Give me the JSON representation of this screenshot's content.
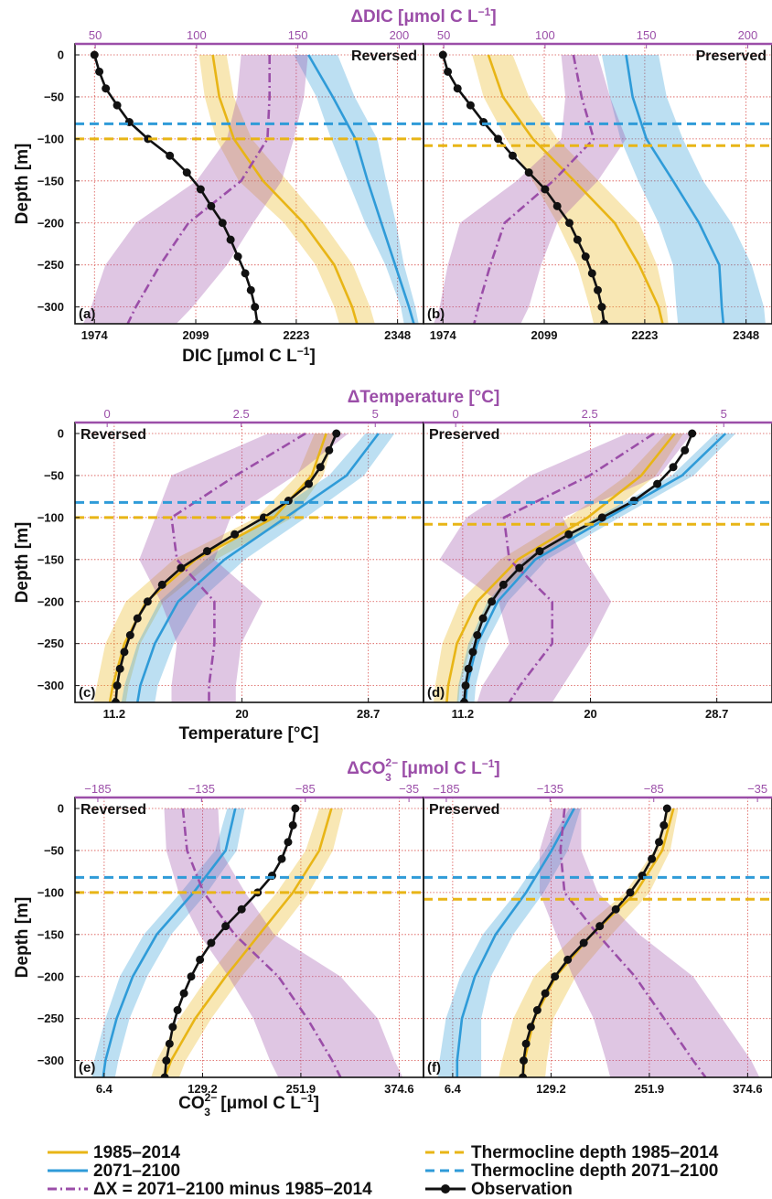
{
  "colors": {
    "gold": "#e8b516",
    "blue": "#2f9bd8",
    "purple": "#9b4ea8",
    "obs": "#111111",
    "grid": "#d9534f"
  },
  "legend": {
    "hist": "1985–2014",
    "fut": "2071–2100",
    "delta": "ΔX = 2071–2100 minus 1985–2014",
    "thermo_hist": "Thermocline depth 1985–2014",
    "thermo_fut": "Thermocline depth 2071–2100",
    "obs": "Observation"
  },
  "chart_data": [
    {
      "type": "line",
      "panel": "(a)",
      "mode": "Reversed",
      "ylabel": "Depth [m]",
      "ylim": [
        -320,
        0
      ],
      "yticks": [
        0,
        -50,
        -100,
        -150,
        -200,
        -250,
        -300
      ],
      "xlabel_main": "DIC [μmol C L",
      "xlabel_sup": "−1",
      "xlabel_tail": "]",
      "xlim": [
        1950,
        2380
      ],
      "xticks": [
        1974,
        2099,
        2223,
        2348
      ],
      "top_title": "ΔDIC [μmol C L",
      "top_sup": "−1",
      "top_tail": "]",
      "top_xlim": [
        40,
        212
      ],
      "top_xticks": [
        50,
        100,
        150,
        200
      ],
      "thermocline": {
        "hist": -100,
        "fut": -82
      },
      "hist": {
        "depth": [
          0,
          -50,
          -100,
          -150,
          -200,
          -250,
          -300,
          -320
        ],
        "x": [
          2120,
          2128,
          2146,
          2182,
          2232,
          2270,
          2292,
          2298
        ],
        "lo": [
          2103,
          2110,
          2124,
          2152,
          2208,
          2247,
          2270,
          2276
        ],
        "hi": [
          2137,
          2146,
          2168,
          2212,
          2256,
          2293,
          2314,
          2320
        ]
      },
      "fut": {
        "depth": [
          0,
          -50,
          -100,
          -150,
          -200,
          -250,
          -300,
          -320
        ],
        "x": [
          2238,
          2268,
          2296,
          2311,
          2328,
          2345,
          2362,
          2368
        ],
        "lo": [
          2220,
          2248,
          2266,
          2287,
          2308,
          2333,
          2352,
          2356
        ],
        "hi": [
          2274,
          2295,
          2323,
          2334,
          2346,
          2356,
          2370,
          2374
        ]
      },
      "delta": {
        "depth": [
          0,
          -50,
          -100,
          -150,
          -200,
          -250,
          -300,
          -320
        ],
        "x": [
          136,
          136,
          135,
          122,
          96,
          82,
          70,
          66
        ],
        "lo": [
          122,
          120,
          115,
          100,
          70,
          55,
          48,
          44
        ],
        "hi": [
          155,
          153,
          148,
          142,
          128,
          115,
          98,
          90
        ]
      },
      "obs": {
        "depth": [
          0,
          -20,
          -40,
          -60,
          -80,
          -100,
          -120,
          -140,
          -160,
          -180,
          -200,
          -220,
          -240,
          -260,
          -280,
          -300,
          -320
        ],
        "x": [
          1974,
          1980,
          1988,
          2002,
          2017,
          2040,
          2067,
          2088,
          2105,
          2118,
          2132,
          2142,
          2151,
          2160,
          2167,
          2172,
          2175
        ]
      }
    },
    {
      "type": "line",
      "panel": "(b)",
      "mode": "Preserved",
      "xlim": [
        1950,
        2380
      ],
      "xticks": [
        1974,
        2099,
        2223,
        2348
      ],
      "top_xlim": [
        40,
        212
      ],
      "top_xticks": [
        50,
        100,
        150,
        200
      ],
      "thermocline": {
        "hist": -108,
        "fut": -82
      },
      "hist": {
        "depth": [
          0,
          -50,
          -100,
          -150,
          -200,
          -250,
          -300,
          -320
        ],
        "x": [
          2030,
          2048,
          2085,
          2136,
          2186,
          2216,
          2240,
          2245
        ],
        "lo": [
          2010,
          2024,
          2052,
          2085,
          2115,
          2140,
          2155,
          2160
        ],
        "hi": [
          2060,
          2080,
          2115,
          2166,
          2216,
          2238,
          2250,
          2252
        ]
      },
      "fut": {
        "depth": [
          0,
          -50,
          -100,
          -150,
          -200,
          -250,
          -300,
          -320
        ],
        "x": [
          2200,
          2208,
          2225,
          2258,
          2290,
          2315,
          2318,
          2320
        ],
        "lo": [
          2170,
          2180,
          2193,
          2215,
          2240,
          2258,
          2262,
          2264
        ],
        "hi": [
          2240,
          2250,
          2270,
          2295,
          2330,
          2355,
          2370,
          2372
        ]
      },
      "delta": {
        "depth": [
          0,
          -50,
          -100,
          -150,
          -200,
          -250,
          -300,
          -320
        ],
        "x": [
          114,
          118,
          124,
          104,
          80,
          73,
          67,
          65
        ],
        "lo": [
          108,
          110,
          108,
          86,
          58,
          52,
          48,
          45
        ],
        "hi": [
          126,
          132,
          140,
          126,
          106,
          98,
          92,
          88
        ]
      },
      "obs": {
        "depth": [
          0,
          -20,
          -40,
          -60,
          -80,
          -100,
          -120,
          -140,
          -160,
          -180,
          -200,
          -220,
          -240,
          -260,
          -280,
          -300,
          -320
        ],
        "x": [
          1974,
          1980,
          1992,
          2008,
          2024,
          2042,
          2060,
          2080,
          2100,
          2115,
          2130,
          2140,
          2150,
          2158,
          2165,
          2170,
          2173
        ]
      }
    },
    {
      "type": "line",
      "panel": "(c)",
      "mode": "Reversed",
      "ylabel": "Depth [m]",
      "ylim": [
        -320,
        0
      ],
      "yticks": [
        0,
        -50,
        -100,
        -150,
        -200,
        -250,
        -300
      ],
      "xlabel_main": "Temperature [°C]",
      "xlim": [
        8.5,
        32.5
      ],
      "xticks": [
        11.2,
        20.0,
        28.7
      ],
      "top_title": "ΔTemperature [°C]",
      "top_xlim": [
        -0.6,
        5.9
      ],
      "top_xticks": [
        0,
        2.5,
        5
      ],
      "thermocline": {
        "hist": -100,
        "fut": -82
      },
      "hist": {
        "depth": [
          0,
          -50,
          -100,
          -150,
          -200,
          -250,
          -300,
          -320
        ],
        "x": [
          25.8,
          24.8,
          22.2,
          16.8,
          13.4,
          11.9,
          11.1,
          10.9
        ],
        "lo": [
          25.0,
          23.8,
          21.0,
          15.3,
          12.0,
          10.6,
          10.0,
          9.8
        ],
        "hi": [
          26.4,
          25.6,
          23.5,
          18.2,
          14.6,
          13.0,
          12.2,
          12.0
        ]
      },
      "fut": {
        "depth": [
          0,
          -50,
          -100,
          -150,
          -200,
          -250,
          -300,
          -320
        ],
        "x": [
          29.4,
          27.2,
          23.0,
          18.8,
          15.6,
          14.0,
          13.0,
          12.8
        ],
        "lo": [
          28.5,
          26.0,
          21.6,
          17.5,
          14.3,
          12.8,
          11.9,
          11.7
        ],
        "hi": [
          30.5,
          28.4,
          24.4,
          20.2,
          17.0,
          15.3,
          14.2,
          14.0
        ]
      },
      "delta": {
        "depth": [
          0,
          -50,
          -100,
          -150,
          -200,
          -250,
          -300,
          -320
        ],
        "x": [
          3.7,
          2.4,
          1.2,
          1.3,
          2.0,
          2.0,
          1.9,
          1.9
        ],
        "lo": [
          3.0,
          1.2,
          0.9,
          0.6,
          1.0,
          1.3,
          1.2,
          1.2
        ],
        "hi": [
          4.5,
          3.5,
          2.3,
          2.0,
          2.9,
          2.5,
          2.4,
          2.4
        ]
      },
      "obs": {
        "depth": [
          0,
          -20,
          -40,
          -60,
          -80,
          -100,
          -120,
          -140,
          -160,
          -180,
          -200,
          -220,
          -240,
          -260,
          -280,
          -300,
          -320
        ],
        "x": [
          26.5,
          26.0,
          25.4,
          24.6,
          23.2,
          21.5,
          19.5,
          17.6,
          15.8,
          14.5,
          13.5,
          12.8,
          12.3,
          11.9,
          11.6,
          11.4,
          11.3
        ]
      }
    },
    {
      "type": "line",
      "panel": "(d)",
      "mode": "Preserved",
      "xlim": [
        8.5,
        32.5
      ],
      "xticks": [
        11.2,
        20.0,
        28.7
      ],
      "top_xlim": [
        -0.6,
        5.9
      ],
      "top_xticks": [
        0,
        2.5,
        5
      ],
      "thermocline": {
        "hist": -108,
        "fut": -82
      },
      "hist": {
        "depth": [
          0,
          -50,
          -100,
          -150,
          -200,
          -250,
          -300,
          -320
        ],
        "x": [
          25.8,
          23.5,
          19.8,
          15.0,
          12.2,
          10.8,
          10.2,
          10.1
        ],
        "lo": [
          25.2,
          22.5,
          18.5,
          13.8,
          11.0,
          9.8,
          9.3,
          9.2
        ],
        "hi": [
          26.4,
          24.5,
          21.0,
          16.3,
          13.2,
          11.8,
          11.0,
          10.9
        ]
      },
      "fut": {
        "depth": [
          0,
          -50,
          -100,
          -150,
          -200,
          -250,
          -300,
          -320
        ],
        "x": [
          29.3,
          26.3,
          21.2,
          16.2,
          13.6,
          12.2,
          11.5,
          11.4
        ],
        "lo": [
          28.6,
          25.6,
          20.4,
          15.4,
          12.9,
          11.6,
          10.9,
          10.8
        ],
        "hi": [
          30.0,
          27.1,
          22.0,
          17.0,
          14.3,
          12.8,
          12.1,
          12.0
        ]
      },
      "delta": {
        "depth": [
          0,
          -50,
          -100,
          -150,
          -200,
          -250,
          -300,
          -320
        ],
        "x": [
          3.7,
          2.5,
          0.9,
          1.0,
          1.8,
          1.8,
          1.2,
          1.0
        ],
        "lo": [
          3.2,
          1.4,
          0.2,
          -0.3,
          0.8,
          1.0,
          0.5,
          0.4
        ],
        "hi": [
          4.4,
          3.8,
          2.0,
          2.4,
          2.9,
          2.5,
          2.0,
          1.8
        ]
      },
      "obs": {
        "depth": [
          0,
          -20,
          -40,
          -60,
          -80,
          -100,
          -120,
          -140,
          -160,
          -180,
          -200,
          -220,
          -240,
          -260,
          -280,
          -300,
          -320
        ],
        "x": [
          27.0,
          26.5,
          25.7,
          24.6,
          23.0,
          20.8,
          18.5,
          16.5,
          15.1,
          14.0,
          13.2,
          12.6,
          12.2,
          11.9,
          11.6,
          11.4,
          11.3
        ]
      }
    },
    {
      "type": "line",
      "panel": "(e)",
      "mode": "Reversed",
      "ylabel": "Depth [m]",
      "ylim": [
        -320,
        0
      ],
      "yticks": [
        0,
        -50,
        -100,
        -150,
        -200,
        -250,
        -300
      ],
      "xlabel_main": "CO",
      "xlabel_sup": "2−",
      "xlabel_sub": "3",
      "xlabel_unit": "[μmol C L",
      "xlabel_unit_sup": "−1",
      "xlabel_tail": "]",
      "xlim": [
        -30,
        405
      ],
      "xticks": [
        6.4,
        129.2,
        251.9,
        374.6
      ],
      "top_title": "ΔCO",
      "top_sup": "2−",
      "top_sub": "3",
      "top_unit": "[μmol C L",
      "top_unit_sup": "−1",
      "top_tail": "]",
      "top_xlim": [
        -196,
        -28
      ],
      "top_xticks": [
        -185,
        -135,
        -85,
        -35
      ],
      "thermocline": {
        "hist": -100,
        "fut": -82
      },
      "hist": {
        "depth": [
          0,
          -50,
          -100,
          -150,
          -200,
          -250,
          -300,
          -320
        ],
        "x": [
          290,
          275,
          242,
          200,
          158,
          120,
          90,
          82
        ],
        "lo": [
          275,
          258,
          222,
          178,
          136,
          100,
          72,
          65
        ],
        "hi": [
          305,
          292,
          262,
          222,
          178,
          140,
          108,
          100
        ]
      },
      "fut": {
        "depth": [
          0,
          -50,
          -100,
          -150,
          -200,
          -250,
          -300,
          -320
        ],
        "x": [
          170,
          158,
          118,
          72,
          42,
          22,
          8,
          5
        ],
        "lo": [
          160,
          145,
          102,
          56,
          26,
          8,
          -6,
          -9
        ],
        "hi": [
          182,
          172,
          135,
          90,
          60,
          38,
          24,
          20
        ]
      },
      "delta": {
        "depth": [
          0,
          -50,
          -100,
          -150,
          -200,
          -250,
          -300,
          -320
        ],
        "x": [
          -144,
          -142,
          -134,
          -119,
          -98,
          -84,
          -72,
          -68
        ],
        "lo": [
          -153,
          -152,
          -146,
          -136,
          -122,
          -110,
          -102,
          -98
        ],
        "hi": [
          -127,
          -126,
          -114,
          -100,
          -68,
          -50,
          -42,
          -38
        ]
      },
      "obs": {
        "depth": [
          0,
          -20,
          -40,
          -60,
          -80,
          -100,
          -120,
          -140,
          -160,
          -180,
          -200,
          -220,
          -240,
          -260,
          -280,
          -300,
          -320
        ],
        "x": [
          245,
          242,
          236,
          228,
          216,
          198,
          178,
          158,
          140,
          126,
          115,
          106,
          98,
          92,
          88,
          84,
          82
        ]
      }
    },
    {
      "type": "line",
      "panel": "(f)",
      "mode": "Preserved",
      "xlim": [
        -30,
        405
      ],
      "xticks": [
        6.4,
        129.2,
        251.9,
        374.6
      ],
      "top_xlim": [
        -196,
        -28
      ],
      "top_xticks": [
        -185,
        -135,
        -85,
        -35
      ],
      "thermocline": {
        "hist": -108,
        "fut": -82
      },
      "hist": {
        "depth": [
          0,
          -50,
          -100,
          -150,
          -200,
          -250,
          -300,
          -320
        ],
        "x": [
          282,
          268,
          235,
          180,
          135,
          108,
          96,
          94
        ],
        "lo": [
          276,
          258,
          222,
          160,
          108,
          82,
          68,
          64
        ],
        "hi": [
          288,
          278,
          252,
          205,
          160,
          132,
          124,
          122
        ]
      },
      "fut": {
        "depth": [
          0,
          -50,
          -100,
          -150,
          -200,
          -250,
          -300,
          -320
        ],
        "x": [
          158,
          130,
          98,
          60,
          34,
          18,
          12,
          12
        ],
        "lo": [
          152,
          122,
          86,
          44,
          16,
          -2,
          -10,
          -12
        ],
        "hi": [
          166,
          150,
          120,
          82,
          54,
          42,
          42,
          42
        ]
      },
      "delta": {
        "depth": [
          0,
          -50,
          -100,
          -150,
          -200,
          -250,
          -300,
          -320
        ],
        "x": [
          -128,
          -130,
          -128,
          -112,
          -94,
          -80,
          -66,
          -60
        ],
        "lo": [
          -134,
          -140,
          -140,
          -132,
          -124,
          -114,
          -108,
          -106
        ],
        "hi": [
          -120,
          -120,
          -112,
          -92,
          -66,
          -52,
          -38,
          -34
        ]
      },
      "obs": {
        "depth": [
          0,
          -20,
          -40,
          -60,
          -80,
          -100,
          -120,
          -140,
          -160,
          -180,
          -200,
          -220,
          -240,
          -260,
          -280,
          -300,
          -320
        ],
        "x": [
          274,
          270,
          264,
          255,
          243,
          228,
          210,
          190,
          170,
          150,
          134,
          122,
          112,
          104,
          98,
          95,
          94
        ]
      }
    }
  ]
}
